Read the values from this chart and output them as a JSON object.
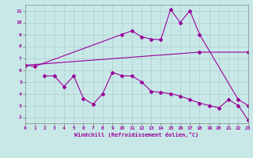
{
  "line1_x": [
    0,
    1,
    10,
    11,
    12,
    13,
    14,
    15,
    16,
    17,
    18,
    22,
    23
  ],
  "line1_y": [
    6.4,
    6.3,
    9.0,
    9.3,
    8.8,
    8.6,
    8.55,
    11.1,
    10.0,
    11.0,
    9.0,
    3.5,
    3.0
  ],
  "line2_x": [
    0,
    18,
    23
  ],
  "line2_y": [
    6.4,
    7.5,
    7.5
  ],
  "line3_x": [
    2,
    3,
    4,
    5,
    6,
    7,
    8,
    9,
    10,
    11,
    12,
    13,
    14,
    15,
    16,
    17,
    18,
    19,
    20,
    21,
    22,
    23
  ],
  "line3_y": [
    5.5,
    5.5,
    4.6,
    5.5,
    3.6,
    3.1,
    4.0,
    5.8,
    5.5,
    5.5,
    5.0,
    4.2,
    4.1,
    4.0,
    3.8,
    3.5,
    3.2,
    3.0,
    2.8,
    3.5,
    3.0,
    1.8
  ],
  "line_color": "#990099",
  "bg_color": "#c8e8e8",
  "grid_color": "#b0cccc",
  "xlabel": "Windchill (Refroidissement éolien,°C)",
  "xlim": [
    0,
    23
  ],
  "ylim": [
    1.5,
    11.5
  ],
  "yticks": [
    2,
    3,
    4,
    5,
    6,
    7,
    8,
    9,
    10,
    11
  ],
  "xticks": [
    0,
    1,
    2,
    3,
    4,
    5,
    6,
    7,
    8,
    9,
    10,
    11,
    12,
    13,
    14,
    15,
    16,
    17,
    18,
    19,
    20,
    21,
    22,
    23
  ],
  "marker": "D",
  "markersize": 2.0,
  "linewidth": 0.8
}
